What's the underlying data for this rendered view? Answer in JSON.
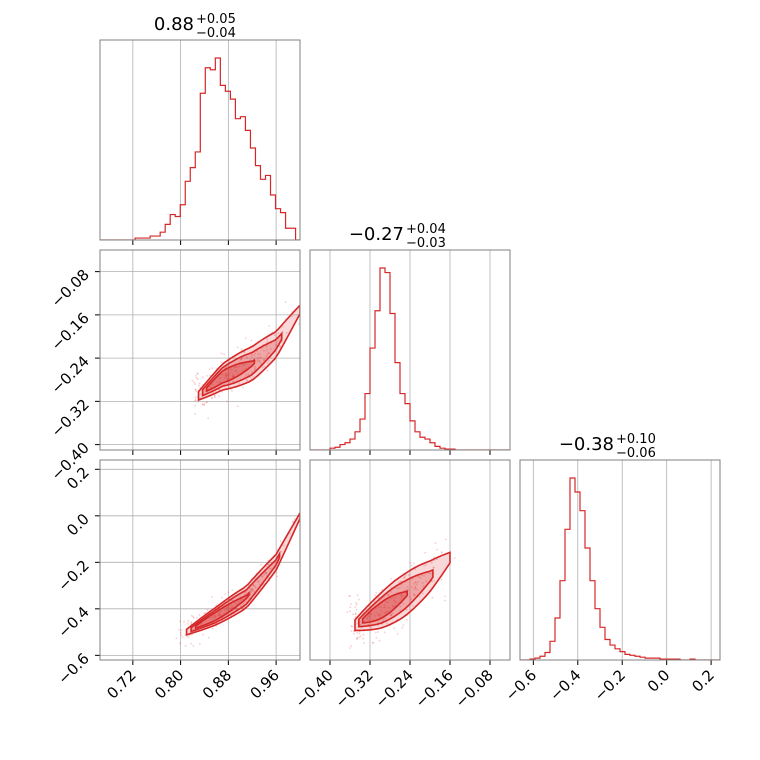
{
  "chart_data": {
    "type": "corner",
    "color": "#d62728",
    "panels": [
      {
        "id": "hist-p1",
        "kind": "hist",
        "row": 0,
        "col": 0,
        "title_main": "0.88",
        "title_sup": "+0.05",
        "title_sub": "−0.04",
        "xlim": [
          0.665,
          1.0
        ],
        "bin_edges_start": 0.665,
        "bin_width": 0.0084,
        "counts": [
          0,
          0,
          0,
          0,
          0,
          0,
          0,
          1,
          1,
          1,
          2,
          2,
          4,
          8,
          13,
          12,
          18,
          30,
          37,
          45,
          75,
          88,
          87,
          93,
          79,
          76,
          72,
          62,
          63,
          56,
          47,
          38,
          31,
          33,
          23,
          16,
          14,
          6,
          6,
          0
        ],
        "xticks": [
          0.72,
          0.8,
          0.88,
          0.96
        ],
        "xtick_labels": [
          "0.72",
          "0.80",
          "0.88",
          "0.96"
        ]
      },
      {
        "id": "scatter-p1-p2",
        "kind": "scatter2d",
        "row": 1,
        "col": 0,
        "xlim": [
          0.665,
          1.0
        ],
        "ylim": [
          -0.41,
          -0.04
        ],
        "xticks": [
          0.72,
          0.8,
          0.88,
          0.96
        ],
        "yticks": [
          -0.08,
          -0.16,
          -0.24,
          -0.32,
          -0.4
        ],
        "ytick_labels": [
          "−0.08",
          "−0.16",
          "−0.24",
          "−0.32",
          "−0.40"
        ],
        "trend": [
          [
            0.83,
            -0.31
          ],
          [
            0.87,
            -0.275
          ],
          [
            0.92,
            -0.25
          ],
          [
            0.96,
            -0.215
          ],
          [
            1.0,
            -0.15
          ]
        ],
        "spread": 0.012
      },
      {
        "id": "hist-p2",
        "kind": "hist",
        "row": 1,
        "col": 1,
        "title_main": "−0.27",
        "title_sup": "+0.04",
        "title_sub": "−0.03",
        "xlim": [
          -0.44,
          -0.04
        ],
        "bin_edges_start": -0.44,
        "bin_width": 0.01,
        "counts": [
          0,
          0,
          0,
          0,
          2,
          3,
          6,
          8,
          12,
          20,
          34,
          62,
          112,
          153,
          200,
          195,
          150,
          96,
          62,
          51,
          32,
          20,
          14,
          12,
          8,
          4,
          2,
          1,
          1,
          0,
          0,
          0,
          0,
          0,
          0,
          0,
          0,
          0,
          0,
          0
        ],
        "xticks": [
          -0.4,
          -0.32,
          -0.24,
          -0.16,
          -0.08
        ],
        "xtick_labels": [
          "−0.40",
          "−0.32",
          "−0.24",
          "−0.16",
          "−0.08"
        ]
      },
      {
        "id": "scatter-p1-p3",
        "kind": "scatter2d",
        "row": 2,
        "col": 0,
        "xlim": [
          0.665,
          1.0
        ],
        "ylim": [
          -0.62,
          0.24
        ],
        "xticks": [
          0.72,
          0.8,
          0.88,
          0.96
        ],
        "xtick_labels": [
          "0.72",
          "0.80",
          "0.88",
          "0.96"
        ],
        "yticks": [
          0.2,
          0.0,
          -0.2,
          -0.4,
          -0.6
        ],
        "ytick_labels": [
          "0.2",
          "0.0",
          "−0.2",
          "−0.4",
          "−0.6"
        ],
        "trend": [
          [
            0.81,
            -0.5
          ],
          [
            0.86,
            -0.43
          ],
          [
            0.91,
            -0.35
          ],
          [
            0.96,
            -0.2
          ],
          [
            1.0,
            0.0
          ]
        ],
        "spread": 0.018
      },
      {
        "id": "scatter-p2-p3",
        "kind": "scatter2d",
        "row": 2,
        "col": 1,
        "xlim": [
          -0.44,
          -0.04
        ],
        "ylim": [
          -0.62,
          0.24
        ],
        "xticks": [
          -0.4,
          -0.32,
          -0.24,
          -0.16,
          -0.08
        ],
        "xtick_labels": [
          "−0.40",
          "−0.32",
          "−0.24",
          "−0.16",
          "−0.08"
        ],
        "trend": [
          [
            -0.35,
            -0.47
          ],
          [
            -0.3,
            -0.41
          ],
          [
            -0.25,
            -0.34
          ],
          [
            -0.2,
            -0.26
          ],
          [
            -0.16,
            -0.18
          ]
        ],
        "spread": 0.035
      },
      {
        "id": "hist-p3",
        "kind": "hist",
        "row": 2,
        "col": 2,
        "title_main": "−0.38",
        "title_sup": "+0.10",
        "title_sub": "−0.06",
        "xlim": [
          -0.66,
          0.24
        ],
        "bin_edges_start": -0.66,
        "bin_width": 0.0225,
        "counts": [
          0,
          0,
          1,
          2,
          4,
          8,
          20,
          45,
          85,
          140,
          195,
          180,
          160,
          120,
          85,
          55,
          35,
          22,
          16,
          12,
          9,
          6,
          5,
          4,
          3,
          2,
          2,
          2,
          1,
          1,
          1,
          1,
          0,
          0,
          1,
          0,
          0,
          0,
          0,
          0
        ],
        "xticks": [
          -0.6,
          -0.4,
          -0.2,
          0.0,
          0.2
        ],
        "xtick_labels": [
          "−0.6",
          "−0.4",
          "−0.2",
          "0.0",
          "0.2"
        ]
      }
    ]
  }
}
